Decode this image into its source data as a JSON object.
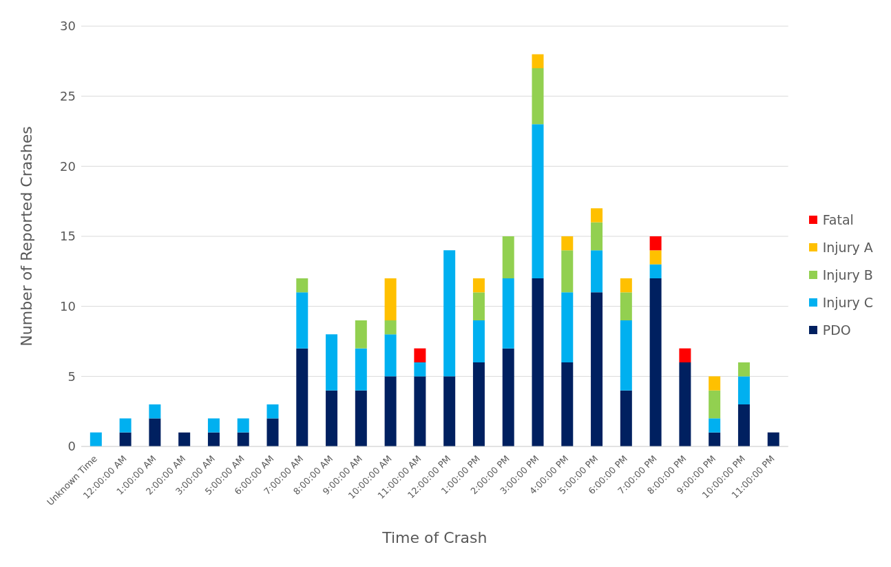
{
  "chart_data": {
    "type": "bar",
    "stacked": true,
    "xlabel": "Time of Crash",
    "ylabel": "Number of Reported Crashes",
    "categories": [
      "Unknown Time",
      "12:00:00 AM",
      "1:00:00 AM",
      "2:00:00 AM",
      "3:00:00 AM",
      "5:00:00 AM",
      "6:00:00 AM",
      "7:00:00 AM",
      "8:00:00 AM",
      "9:00:00 AM",
      "10:00:00 AM",
      "11:00:00 AM",
      "12:00:00 PM",
      "1:00:00 PM",
      "2:00:00 PM",
      "3:00:00 PM",
      "4:00:00 PM",
      "5:00:00 PM",
      "6:00:00 PM",
      "7:00:00 PM",
      "8:00:00 PM",
      "9:00:00 PM",
      "10:00:00 PM",
      "11:00:00 PM"
    ],
    "series": [
      {
        "name": "PDO",
        "color": "#002060",
        "values": [
          0,
          1,
          2,
          1,
          1,
          1,
          2,
          7,
          4,
          4,
          5,
          5,
          5,
          6,
          7,
          12,
          6,
          11,
          4,
          12,
          6,
          1,
          3,
          1
        ]
      },
      {
        "name": "Injury C",
        "color": "#00b0f0",
        "values": [
          1,
          1,
          1,
          0,
          1,
          1,
          1,
          4,
          4,
          3,
          3,
          1,
          9,
          3,
          5,
          11,
          5,
          3,
          5,
          1,
          0,
          1,
          2,
          0
        ]
      },
      {
        "name": "Injury B",
        "color": "#92d050",
        "values": [
          0,
          0,
          0,
          0,
          0,
          0,
          0,
          1,
          0,
          2,
          1,
          0,
          0,
          2,
          3,
          4,
          3,
          2,
          2,
          0,
          0,
          2,
          1,
          0
        ]
      },
      {
        "name": "Injury A",
        "color": "#ffc000",
        "values": [
          0,
          0,
          0,
          0,
          0,
          0,
          0,
          0,
          0,
          0,
          3,
          0,
          0,
          1,
          0,
          1,
          1,
          1,
          1,
          1,
          0,
          1,
          0,
          0
        ]
      },
      {
        "name": "Fatal",
        "color": "#ff0000",
        "values": [
          0,
          0,
          0,
          0,
          0,
          0,
          0,
          0,
          0,
          0,
          0,
          1,
          0,
          0,
          0,
          0,
          0,
          0,
          0,
          1,
          1,
          0,
          0,
          0
        ]
      }
    ],
    "ylim": [
      0,
      30
    ],
    "yticks": [
      0,
      5,
      10,
      15,
      20,
      25,
      30
    ],
    "grid": "y",
    "legend": "right"
  }
}
